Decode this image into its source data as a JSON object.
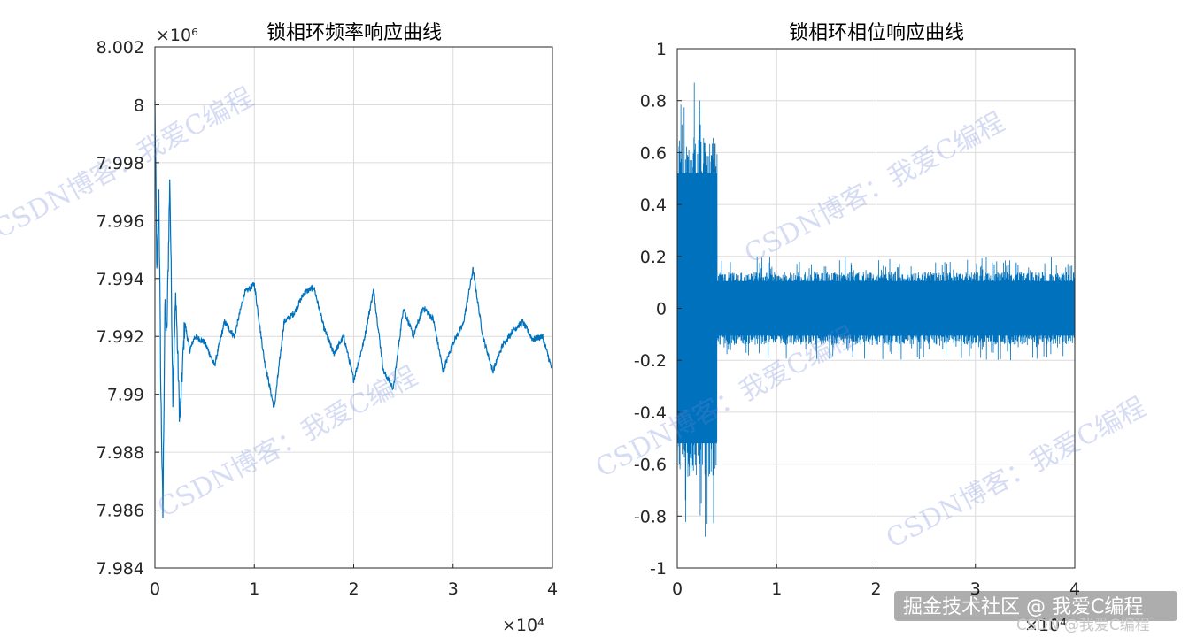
{
  "chart_data": [
    {
      "type": "line",
      "title": "锁相环频率响应曲线",
      "xlabel": "",
      "ylabel": "",
      "xlim": [
        0,
        40000
      ],
      "ylim": [
        7984000,
        8002000
      ],
      "x_ticks": [
        0,
        10000,
        20000,
        30000,
        40000
      ],
      "x_tick_labels": [
        "0",
        "1",
        "2",
        "3",
        "4"
      ],
      "x_exponent_label": "×10⁴",
      "y_ticks": [
        7984000,
        7986000,
        7988000,
        7990000,
        7992000,
        7994000,
        7996000,
        7998000,
        8000000,
        8002000
      ],
      "y_tick_labels": [
        "7.984",
        "7.986",
        "7.988",
        "7.99",
        "7.992",
        "7.994",
        "7.996",
        "7.998",
        "8",
        "8.002"
      ],
      "y_exponent_label": "×10⁶",
      "grid": true,
      "color": "#0072BD",
      "series": [
        {
          "x": [
            0,
            200,
            400,
            600,
            800,
            1000,
            1200,
            1500,
            1800,
            2100,
            2500,
            3000,
            3500,
            4000,
            5000,
            6000,
            7000,
            8000,
            9000,
            10000,
            11000,
            12000,
            13000,
            14000,
            15000,
            16000,
            17000,
            18000,
            19000,
            20000,
            21000,
            22000,
            23000,
            24000,
            25000,
            26000,
            27000,
            28000,
            29000,
            30000,
            31000,
            32000,
            33000,
            34000,
            35000,
            36000,
            37000,
            38000,
            39000,
            40000
          ],
          "y": [
            8000000,
            7994000,
            7997000,
            7990000,
            7985800,
            7993000,
            7992000,
            7997500,
            7990000,
            7993500,
            7989000,
            7992500,
            7991500,
            7992000,
            7991800,
            7991000,
            7992500,
            7992000,
            7993500,
            7993800,
            7991200,
            7989500,
            7992500,
            7992800,
            7993500,
            7993700,
            7992300,
            7991400,
            7992000,
            7990500,
            7991800,
            7993600,
            7990800,
            7990200,
            7993000,
            7992000,
            7993000,
            7992600,
            7990800,
            7991800,
            7992400,
            7994300,
            7992000,
            7990800,
            7991700,
            7992200,
            7992500,
            7991900,
            7992000,
            7990800
          ]
        }
      ]
    },
    {
      "type": "line",
      "title": "锁相环相位响应曲线",
      "xlabel": "",
      "ylabel": "",
      "xlim": [
        0,
        40000
      ],
      "ylim": [
        -1,
        1
      ],
      "x_ticks": [
        0,
        10000,
        20000,
        30000,
        40000
      ],
      "x_tick_labels": [
        "0",
        "1",
        "2",
        "3",
        "4"
      ],
      "x_exponent_label": "×10⁴",
      "y_ticks": [
        -1,
        -0.8,
        -0.6,
        -0.4,
        -0.2,
        0,
        0.2,
        0.4,
        0.6,
        0.8,
        1
      ],
      "y_tick_labels": [
        "-1",
        "-0.8",
        "-0.6",
        "-0.4",
        "-0.2",
        "0",
        "0.2",
        "0.4",
        "0.6",
        "0.8",
        "1"
      ],
      "grid": true,
      "color": "#0072BD",
      "series": [
        {
          "x": [
            0,
            4000,
            4000,
            40000
          ],
          "envelope_upper": [
            0.65,
            0.65,
            0.14,
            0.14
          ],
          "envelope_lower": [
            -0.65,
            -0.65,
            -0.14,
            -0.14
          ],
          "peak_upper": [
            0.88,
            0.88,
            0.2,
            0.2
          ],
          "peak_lower": [
            -0.85,
            -0.85,
            -0.18,
            -0.18
          ]
        }
      ]
    }
  ],
  "watermarks": {
    "text_a": "CSDN博客：我爱C编程",
    "corner": "掘金技术社区 @ 我爱C编程",
    "corner_faint": "CSDN @我爱C编程"
  },
  "colors": {
    "line": "#0072BD",
    "grid": "#dcdcdc",
    "axis": "#262626",
    "watermark": "#6e86d8"
  }
}
